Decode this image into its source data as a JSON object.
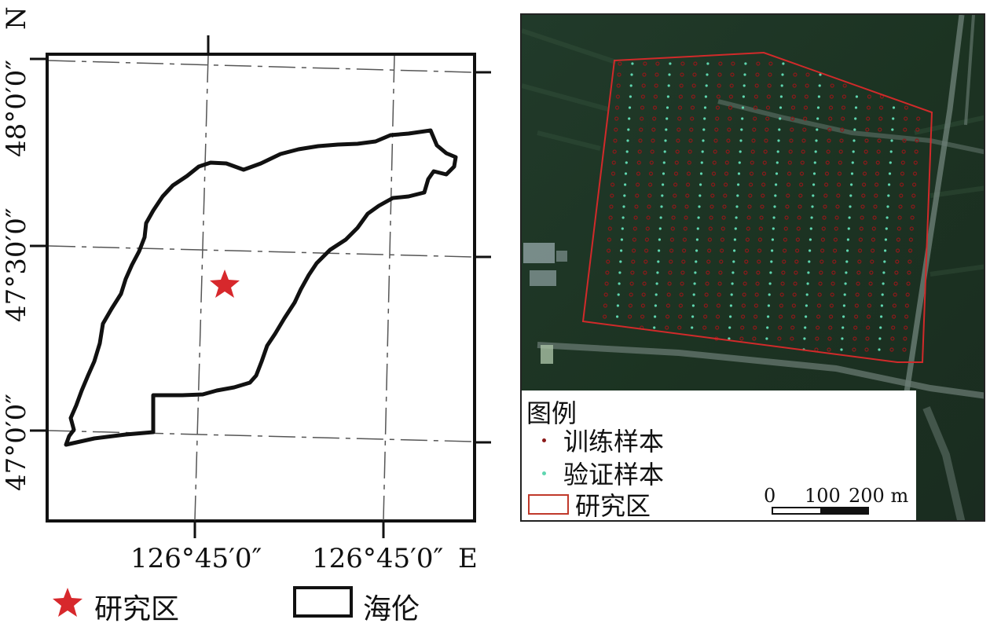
{
  "left_map": {
    "north_label": "N",
    "east_label": "E",
    "lat_labels": [
      "48°0′0″",
      "47°30′0″",
      "47°0′0″"
    ],
    "lon_labels": [
      "126°45′0″",
      "126°45′0″"
    ],
    "legend": {
      "star_label": "研究区",
      "boundary_label": "海伦"
    },
    "colors": {
      "star": "#d7282c",
      "boundary": "#111111"
    }
  },
  "right_map": {
    "legend_title": "图例",
    "legend_items": [
      {
        "label": "训练样本",
        "color": "#8b1a1a",
        "icon": "dot-icon"
      },
      {
        "label": "验证样本",
        "color": "#5fd6b0",
        "icon": "dot-icon"
      },
      {
        "label": "研究区",
        "color": "#c0392b",
        "icon": "rectangle-outline-icon"
      }
    ],
    "scale_labels": [
      "0",
      "100",
      "200 m"
    ],
    "colors": {
      "study_area_outline": "#d12a2a",
      "background": "#1e3324"
    }
  }
}
